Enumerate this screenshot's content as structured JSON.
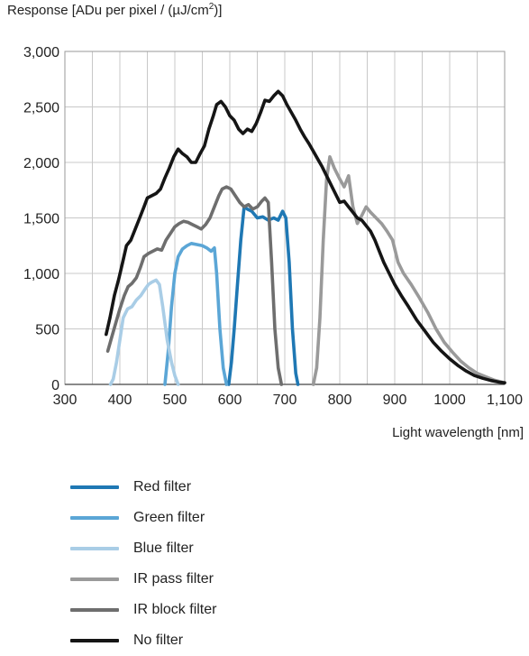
{
  "chart_data": {
    "type": "line",
    "title": "",
    "ylabel_prefix": "Response [ADu per pixel / (µJ/cm",
    "ylabel_sup": "2",
    "ylabel_suffix": ")]",
    "xlabel": "Light wavelength [nm]",
    "xlim": [
      300,
      1100
    ],
    "ylim": [
      0,
      3000
    ],
    "x_ticks": [
      300,
      400,
      500,
      600,
      700,
      800,
      900,
      1000,
      1100
    ],
    "x_tick_labels": [
      "300",
      "400",
      "500",
      "600",
      "700",
      "800",
      "900",
      "1000",
      "1,100"
    ],
    "y_ticks": [
      0,
      500,
      1000,
      1500,
      2000,
      2500,
      3000
    ],
    "y_tick_labels": [
      "0",
      "500",
      "1,000",
      "1,500",
      "2,000",
      "2,500",
      "3,000"
    ],
    "grid": true,
    "legend_position": "bottom",
    "series": [
      {
        "name": "Red filter",
        "color": "#1f78b4",
        "points": [
          [
            598,
            0
          ],
          [
            603,
            200
          ],
          [
            608,
            500
          ],
          [
            614,
            900
          ],
          [
            620,
            1300
          ],
          [
            626,
            1600
          ],
          [
            632,
            1580
          ],
          [
            640,
            1560
          ],
          [
            650,
            1500
          ],
          [
            660,
            1510
          ],
          [
            670,
            1480
          ],
          [
            680,
            1500
          ],
          [
            688,
            1480
          ],
          [
            696,
            1560
          ],
          [
            702,
            1500
          ],
          [
            708,
            1100
          ],
          [
            714,
            500
          ],
          [
            720,
            100
          ],
          [
            724,
            0
          ]
        ]
      },
      {
        "name": "Green filter",
        "color": "#5ba6d6",
        "points": [
          [
            482,
            0
          ],
          [
            488,
            300
          ],
          [
            494,
            700
          ],
          [
            500,
            1000
          ],
          [
            506,
            1150
          ],
          [
            514,
            1220
          ],
          [
            522,
            1250
          ],
          [
            530,
            1270
          ],
          [
            540,
            1260
          ],
          [
            550,
            1250
          ],
          [
            558,
            1230
          ],
          [
            566,
            1200
          ],
          [
            572,
            1230
          ],
          [
            576,
            1000
          ],
          [
            582,
            500
          ],
          [
            588,
            150
          ],
          [
            594,
            0
          ]
        ]
      },
      {
        "name": "Blue filter",
        "color": "#a9cde6",
        "points": [
          [
            383,
            0
          ],
          [
            388,
            50
          ],
          [
            394,
            200
          ],
          [
            400,
            400
          ],
          [
            406,
            600
          ],
          [
            414,
            680
          ],
          [
            422,
            700
          ],
          [
            430,
            760
          ],
          [
            438,
            800
          ],
          [
            446,
            860
          ],
          [
            452,
            900
          ],
          [
            458,
            920
          ],
          [
            466,
            940
          ],
          [
            472,
            900
          ],
          [
            478,
            700
          ],
          [
            486,
            400
          ],
          [
            494,
            200
          ],
          [
            500,
            80
          ],
          [
            506,
            0
          ]
        ]
      },
      {
        "name": "IR pass filter",
        "color": "#9a9a9a",
        "points": [
          [
            752,
            0
          ],
          [
            758,
            150
          ],
          [
            764,
            600
          ],
          [
            770,
            1300
          ],
          [
            776,
            1850
          ],
          [
            782,
            2050
          ],
          [
            790,
            1950
          ],
          [
            800,
            1850
          ],
          [
            808,
            1780
          ],
          [
            816,
            1880
          ],
          [
            824,
            1600
          ],
          [
            832,
            1450
          ],
          [
            840,
            1520
          ],
          [
            848,
            1600
          ],
          [
            856,
            1550
          ],
          [
            866,
            1500
          ],
          [
            876,
            1450
          ],
          [
            886,
            1380
          ],
          [
            896,
            1300
          ],
          [
            906,
            1100
          ],
          [
            916,
            1000
          ],
          [
            930,
            900
          ],
          [
            945,
            780
          ],
          [
            960,
            650
          ],
          [
            975,
            500
          ],
          [
            990,
            380
          ],
          [
            1005,
            290
          ],
          [
            1020,
            210
          ],
          [
            1035,
            150
          ],
          [
            1050,
            100
          ],
          [
            1065,
            70
          ],
          [
            1080,
            40
          ],
          [
            1095,
            20
          ]
        ]
      },
      {
        "name": "IR block filter",
        "color": "#6e6e6e",
        "points": [
          [
            378,
            300
          ],
          [
            385,
            420
          ],
          [
            393,
            560
          ],
          [
            400,
            680
          ],
          [
            408,
            800
          ],
          [
            415,
            880
          ],
          [
            422,
            910
          ],
          [
            430,
            960
          ],
          [
            437,
            1050
          ],
          [
            444,
            1150
          ],
          [
            452,
            1180
          ],
          [
            460,
            1200
          ],
          [
            468,
            1220
          ],
          [
            476,
            1210
          ],
          [
            484,
            1300
          ],
          [
            492,
            1360
          ],
          [
            500,
            1420
          ],
          [
            508,
            1450
          ],
          [
            516,
            1470
          ],
          [
            524,
            1460
          ],
          [
            532,
            1440
          ],
          [
            540,
            1420
          ],
          [
            548,
            1400
          ],
          [
            556,
            1440
          ],
          [
            564,
            1500
          ],
          [
            572,
            1600
          ],
          [
            580,
            1700
          ],
          [
            586,
            1760
          ],
          [
            594,
            1780
          ],
          [
            602,
            1760
          ],
          [
            610,
            1700
          ],
          [
            618,
            1640
          ],
          [
            626,
            1600
          ],
          [
            634,
            1620
          ],
          [
            642,
            1580
          ],
          [
            650,
            1600
          ],
          [
            658,
            1650
          ],
          [
            664,
            1680
          ],
          [
            670,
            1640
          ],
          [
            676,
            1100
          ],
          [
            682,
            500
          ],
          [
            688,
            150
          ],
          [
            694,
            0
          ]
        ]
      },
      {
        "name": "No filter",
        "color": "#151515",
        "points": [
          [
            375,
            450
          ],
          [
            382,
            600
          ],
          [
            390,
            800
          ],
          [
            398,
            950
          ],
          [
            405,
            1100
          ],
          [
            412,
            1250
          ],
          [
            420,
            1300
          ],
          [
            428,
            1400
          ],
          [
            436,
            1500
          ],
          [
            444,
            1600
          ],
          [
            450,
            1680
          ],
          [
            458,
            1700
          ],
          [
            466,
            1720
          ],
          [
            474,
            1760
          ],
          [
            482,
            1860
          ],
          [
            490,
            1950
          ],
          [
            498,
            2050
          ],
          [
            506,
            2120
          ],
          [
            514,
            2080
          ],
          [
            522,
            2050
          ],
          [
            530,
            2000
          ],
          [
            538,
            2000
          ],
          [
            546,
            2080
          ],
          [
            554,
            2150
          ],
          [
            562,
            2300
          ],
          [
            570,
            2420
          ],
          [
            576,
            2520
          ],
          [
            584,
            2550
          ],
          [
            592,
            2500
          ],
          [
            600,
            2420
          ],
          [
            608,
            2380
          ],
          [
            616,
            2300
          ],
          [
            624,
            2260
          ],
          [
            632,
            2300
          ],
          [
            640,
            2280
          ],
          [
            648,
            2350
          ],
          [
            656,
            2450
          ],
          [
            664,
            2560
          ],
          [
            672,
            2550
          ],
          [
            680,
            2600
          ],
          [
            688,
            2640
          ],
          [
            696,
            2600
          ],
          [
            704,
            2520
          ],
          [
            712,
            2450
          ],
          [
            720,
            2380
          ],
          [
            728,
            2300
          ],
          [
            736,
            2230
          ],
          [
            744,
            2170
          ],
          [
            752,
            2100
          ],
          [
            760,
            2030
          ],
          [
            768,
            1960
          ],
          [
            776,
            1880
          ],
          [
            784,
            1800
          ],
          [
            792,
            1720
          ],
          [
            800,
            1640
          ],
          [
            808,
            1650
          ],
          [
            816,
            1600
          ],
          [
            824,
            1550
          ],
          [
            832,
            1500
          ],
          [
            840,
            1480
          ],
          [
            848,
            1430
          ],
          [
            856,
            1380
          ],
          [
            864,
            1300
          ],
          [
            872,
            1200
          ],
          [
            880,
            1100
          ],
          [
            890,
            1000
          ],
          [
            900,
            900
          ],
          [
            912,
            800
          ],
          [
            925,
            700
          ],
          [
            940,
            580
          ],
          [
            955,
            480
          ],
          [
            970,
            380
          ],
          [
            985,
            300
          ],
          [
            1000,
            230
          ],
          [
            1015,
            170
          ],
          [
            1030,
            120
          ],
          [
            1045,
            80
          ],
          [
            1060,
            55
          ],
          [
            1075,
            35
          ],
          [
            1090,
            20
          ],
          [
            1100,
            15
          ]
        ]
      }
    ]
  }
}
